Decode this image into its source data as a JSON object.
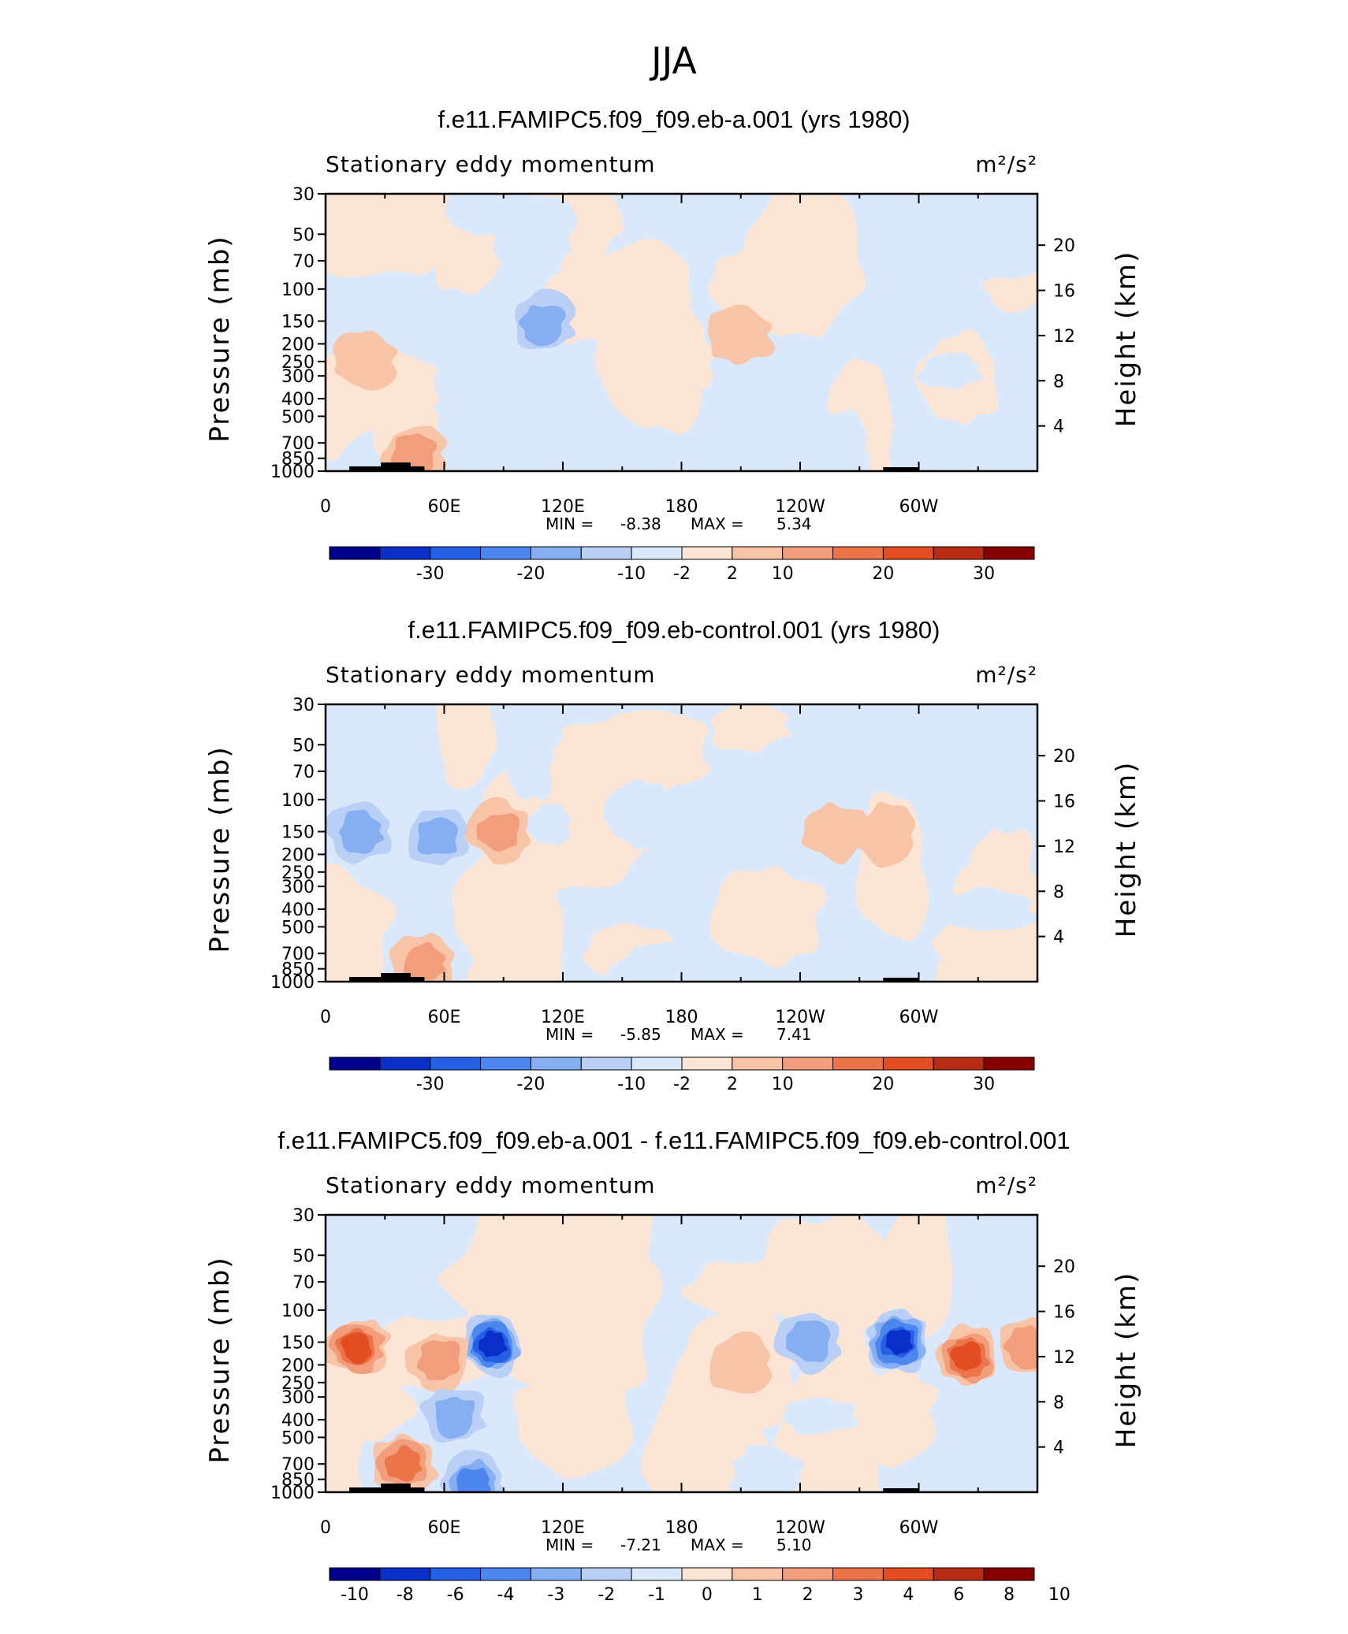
{
  "figure": {
    "title": "JJA",
    "colors": {
      "blue_6": "#00008c",
      "blue_5": "#0a2fc9",
      "blue_4": "#2460e6",
      "blue_3": "#4c86ee",
      "blue_2": "#86aef2",
      "blue_1": "#b9cff5",
      "blue_0": "#d9e8fb",
      "red_0": "#fde5d5",
      "red_1": "#f8c4a8",
      "red_2": "#f29e7c",
      "red_3": "#ec7449",
      "red_4": "#e44c22",
      "red_5": "#b82c13",
      "red_6": "#860000"
    }
  },
  "panels": [
    {
      "id": "panel-1",
      "title": "f.e11.FAMIPC5.f09_f09.eb-a.001 (yrs 1980)",
      "left_label": "Stationary eddy momentum",
      "right_label": "m²/s²",
      "y_left_label": "Pressure (mb)",
      "y_right_label": "Height (km)",
      "pressure_ticks": [
        "30",
        "50",
        "70",
        "100",
        "150",
        "200",
        "250",
        "300",
        "400",
        "500",
        "700",
        "850",
        "1000"
      ],
      "height_ticks": [
        "20",
        "16",
        "12",
        "8",
        "4"
      ],
      "x_ticks": [
        "0",
        "60E",
        "120E",
        "180",
        "120W",
        "60W"
      ],
      "min_label": "MIN =",
      "min_value": "-8.38",
      "max_label": "MAX =",
      "max_value": "5.34",
      "colorbar_labels": [
        "-30",
        "-20",
        "-10",
        "-2",
        "2",
        "10",
        "20",
        "30"
      ],
      "features": [
        {
          "lon": 210,
          "p": 180,
          "lev": 1
        },
        {
          "lon": 110,
          "p": 155,
          "lev": -2
        },
        {
          "lon": 45,
          "p": 800,
          "lev": 2
        },
        {
          "lon": 20,
          "p": 250,
          "lev": 1
        }
      ]
    },
    {
      "id": "panel-2",
      "title": "f.e11.FAMIPC5.f09_f09.eb-control.001 (yrs 1980)",
      "left_label": "Stationary eddy momentum",
      "right_label": "m²/s²",
      "y_left_label": "Pressure (mb)",
      "y_right_label": "Height (km)",
      "pressure_ticks": [
        "30",
        "50",
        "70",
        "100",
        "150",
        "200",
        "250",
        "300",
        "400",
        "500",
        "700",
        "850",
        "1000"
      ],
      "height_ticks": [
        "20",
        "16",
        "12",
        "8",
        "4"
      ],
      "x_ticks": [
        "0",
        "60E",
        "120E",
        "180",
        "120W",
        "60W"
      ],
      "min_label": "MIN =",
      "min_value": "-5.85",
      "max_label": "MAX =",
      "max_value": "7.41",
      "colorbar_labels": [
        "-30",
        "-20",
        "-10",
        "-2",
        "2",
        "10",
        "20",
        "30"
      ],
      "features": [
        {
          "lon": 88,
          "p": 150,
          "lev": 2
        },
        {
          "lon": 57,
          "p": 160,
          "lev": -2
        },
        {
          "lon": 18,
          "p": 150,
          "lev": -2
        },
        {
          "lon": 258,
          "p": 150,
          "lev": 1
        },
        {
          "lon": 283,
          "p": 155,
          "lev": 1
        },
        {
          "lon": 50,
          "p": 800,
          "lev": 2
        }
      ]
    },
    {
      "id": "panel-3",
      "title": "f.e11.FAMIPC5.f09_f09.eb-a.001 - f.e11.FAMIPC5.f09_f09.eb-control.001",
      "left_label": "Stationary eddy momentum",
      "right_label": "m²/s²",
      "y_left_label": "Pressure (mb)",
      "y_right_label": "Height (km)",
      "pressure_ticks": [
        "30",
        "50",
        "70",
        "100",
        "150",
        "200",
        "250",
        "300",
        "400",
        "500",
        "700",
        "850",
        "1000"
      ],
      "height_ticks": [
        "20",
        "16",
        "12",
        "8",
        "4"
      ],
      "x_ticks": [
        "0",
        "60E",
        "120E",
        "180",
        "120W",
        "60W"
      ],
      "min_label": "MIN =",
      "min_value": "-7.21",
      "max_label": "MAX =",
      "max_value": "5.10",
      "colorbar_labels": [
        "-10",
        "-8",
        "-6",
        "-4",
        "-3",
        "-2",
        "-1",
        "0",
        "1",
        "2",
        "3",
        "4",
        "6",
        "8",
        "10"
      ],
      "features": [
        {
          "lon": 16,
          "p": 160,
          "lev": 4
        },
        {
          "lon": 85,
          "p": 155,
          "lev": -5
        },
        {
          "lon": 290,
          "p": 150,
          "lev": -5
        },
        {
          "lon": 325,
          "p": 180,
          "lev": 4
        },
        {
          "lon": 355,
          "p": 160,
          "lev": 2
        },
        {
          "lon": 58,
          "p": 190,
          "lev": 2
        },
        {
          "lon": 40,
          "p": 700,
          "lev": 3
        },
        {
          "lon": 75,
          "p": 900,
          "lev": -3
        },
        {
          "lon": 65,
          "p": 380,
          "lev": -2
        },
        {
          "lon": 245,
          "p": 150,
          "lev": -2
        },
        {
          "lon": 210,
          "p": 200,
          "lev": 1
        }
      ]
    }
  ],
  "chart_data": [
    {
      "type": "heatmap",
      "title": "f.e11.FAMIPC5.f09_f09.eb-a.001 (yrs 1980)",
      "xlabel": "",
      "ylabel": "Pressure (mb)",
      "y2label": "Height (km)",
      "units": "m²/s²",
      "xlim": [
        0,
        360
      ],
      "ylim": [
        1000,
        30
      ],
      "y_scale": "log",
      "min": -8.38,
      "max": 5.34,
      "levels": [
        -30,
        -25,
        -20,
        -15,
        -10,
        -5,
        -2,
        0,
        2,
        5,
        10,
        15,
        20,
        25,
        30
      ]
    },
    {
      "type": "heatmap",
      "title": "f.e11.FAMIPC5.f09_f09.eb-control.001 (yrs 1980)",
      "xlabel": "",
      "ylabel": "Pressure (mb)",
      "y2label": "Height (km)",
      "units": "m²/s²",
      "xlim": [
        0,
        360
      ],
      "ylim": [
        1000,
        30
      ],
      "y_scale": "log",
      "min": -5.85,
      "max": 7.41,
      "levels": [
        -30,
        -25,
        -20,
        -15,
        -10,
        -5,
        -2,
        0,
        2,
        5,
        10,
        15,
        20,
        25,
        30
      ]
    },
    {
      "type": "heatmap",
      "title": "f.e11.FAMIPC5.f09_f09.eb-a.001 - f.e11.FAMIPC5.f09_f09.eb-control.001",
      "xlabel": "",
      "ylabel": "Pressure (mb)",
      "y2label": "Height (km)",
      "units": "m²/s²",
      "xlim": [
        0,
        360
      ],
      "ylim": [
        1000,
        30
      ],
      "y_scale": "log",
      "min": -7.21,
      "max": 5.1,
      "levels": [
        -10,
        -8,
        -6,
        -4,
        -3,
        -2,
        -1,
        0,
        1,
        2,
        3,
        4,
        6,
        8,
        10
      ]
    }
  ]
}
